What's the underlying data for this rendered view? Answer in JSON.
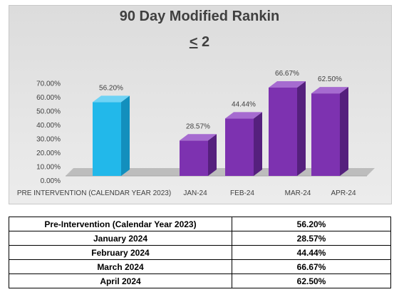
{
  "chart_data": {
    "type": "bar",
    "title": "90 Day Modified Rankin",
    "subtitle_symbol": "<",
    "subtitle_value": " 2",
    "categories": [
      "PRE INTERVENTION (CALENDAR YEAR 2023)",
      "JAN-24",
      "FEB-24",
      "MAR-24",
      "APR-24"
    ],
    "values": [
      56.2,
      28.57,
      44.44,
      66.67,
      62.5
    ],
    "data_labels": [
      "56.20%",
      "28.57%",
      "44.44%",
      "66.67%",
      "62.50%"
    ],
    "y_ticks": [
      "0.00%",
      "10.00%",
      "20.00%",
      "30.00%",
      "40.00%",
      "50.00%",
      "60.00%",
      "70.00%"
    ],
    "ylim": [
      0,
      70
    ],
    "grid": false,
    "legend": "none",
    "colors": {
      "baseline": "#1fb4e6",
      "intervention": "#7f35b2"
    }
  },
  "table": {
    "rows": [
      {
        "label": "Pre-Intervention (Calendar Year 2023)",
        "value": "56.20%"
      },
      {
        "label": "January 2024",
        "value": "28.57%"
      },
      {
        "label": "February 2024",
        "value": "44.44%"
      },
      {
        "label": "March 2024",
        "value": "66.67%"
      },
      {
        "label": "April 2024",
        "value": "62.50%"
      }
    ]
  }
}
